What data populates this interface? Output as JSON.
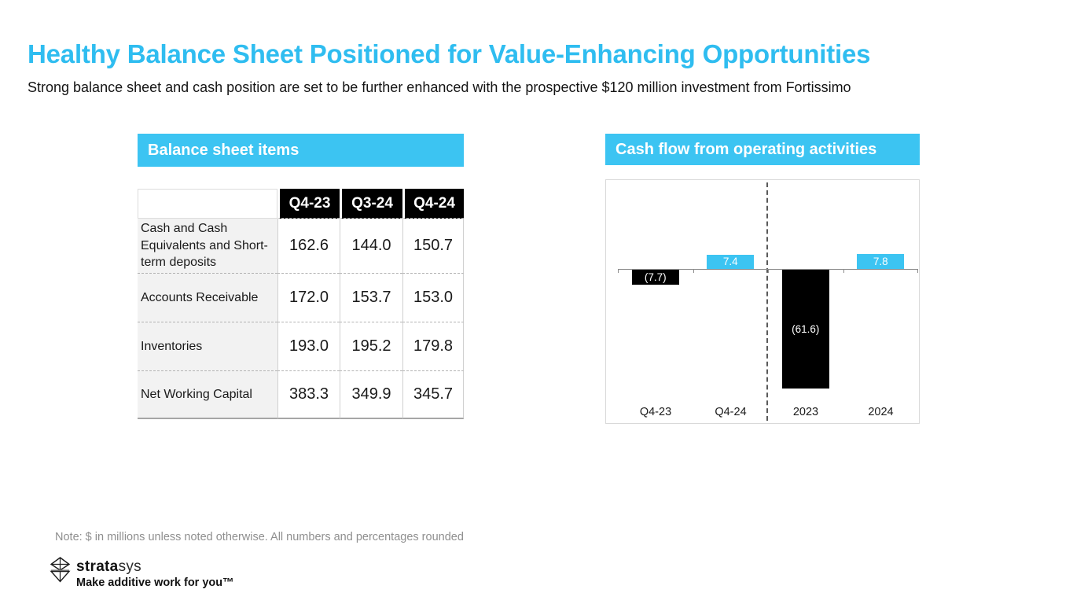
{
  "slide": {
    "title": "Healthy Balance Sheet Positioned for Value-Enhancing Opportunities",
    "subtitle": "Strong balance sheet and cash position are set to be further enhanced with the prospective $120 million investment from Fortissimo",
    "note": "Note: $ in millions unless noted otherwise. All numbers and percentages rounded"
  },
  "colors": {
    "accent_cyan": "#3cc4f2",
    "title_cyan": "#2fbdf0",
    "bar_positive": "#3cc4f2",
    "bar_negative": "#000000",
    "table_header_bg": "#000000",
    "table_label_bg": "#f2f2f2"
  },
  "balance_table": {
    "header": "Balance sheet items",
    "columns": [
      "Q4-23",
      "Q3-24",
      "Q4-24"
    ],
    "rows": [
      {
        "label": "Cash and Cash Equivalents and Short-term deposits",
        "values": [
          "162.6",
          "144.0",
          "150.7"
        ]
      },
      {
        "label": "Accounts Receivable",
        "values": [
          "172.0",
          "153.7",
          "153.0"
        ]
      },
      {
        "label": "Inventories",
        "values": [
          "193.0",
          "195.2",
          "179.8"
        ]
      },
      {
        "label": "Net Working Capital",
        "values": [
          "383.3",
          "349.9",
          "345.7"
        ]
      }
    ]
  },
  "chart_data": {
    "type": "bar",
    "title": "Cash flow from operating activities",
    "categories": [
      "Q4-23",
      "Q4-24",
      "2023",
      "2024"
    ],
    "values": [
      -7.7,
      7.4,
      -61.6,
      7.8
    ],
    "labels": [
      "(7.7)",
      "7.4",
      "(61.6)",
      "7.8"
    ],
    "xlabel": "",
    "ylabel": "",
    "ylim": [
      -70,
      25
    ],
    "grid": false,
    "legend": false,
    "positive_color": "#3cc4f2",
    "negative_color": "#000000",
    "separator_after_category": "Q4-24",
    "annotation": "dashed vertical line separates quarterly and full-year figures"
  },
  "logo": {
    "brand_bold": "strata",
    "brand_light": "sys",
    "tagline": "Make additive work for you™"
  }
}
